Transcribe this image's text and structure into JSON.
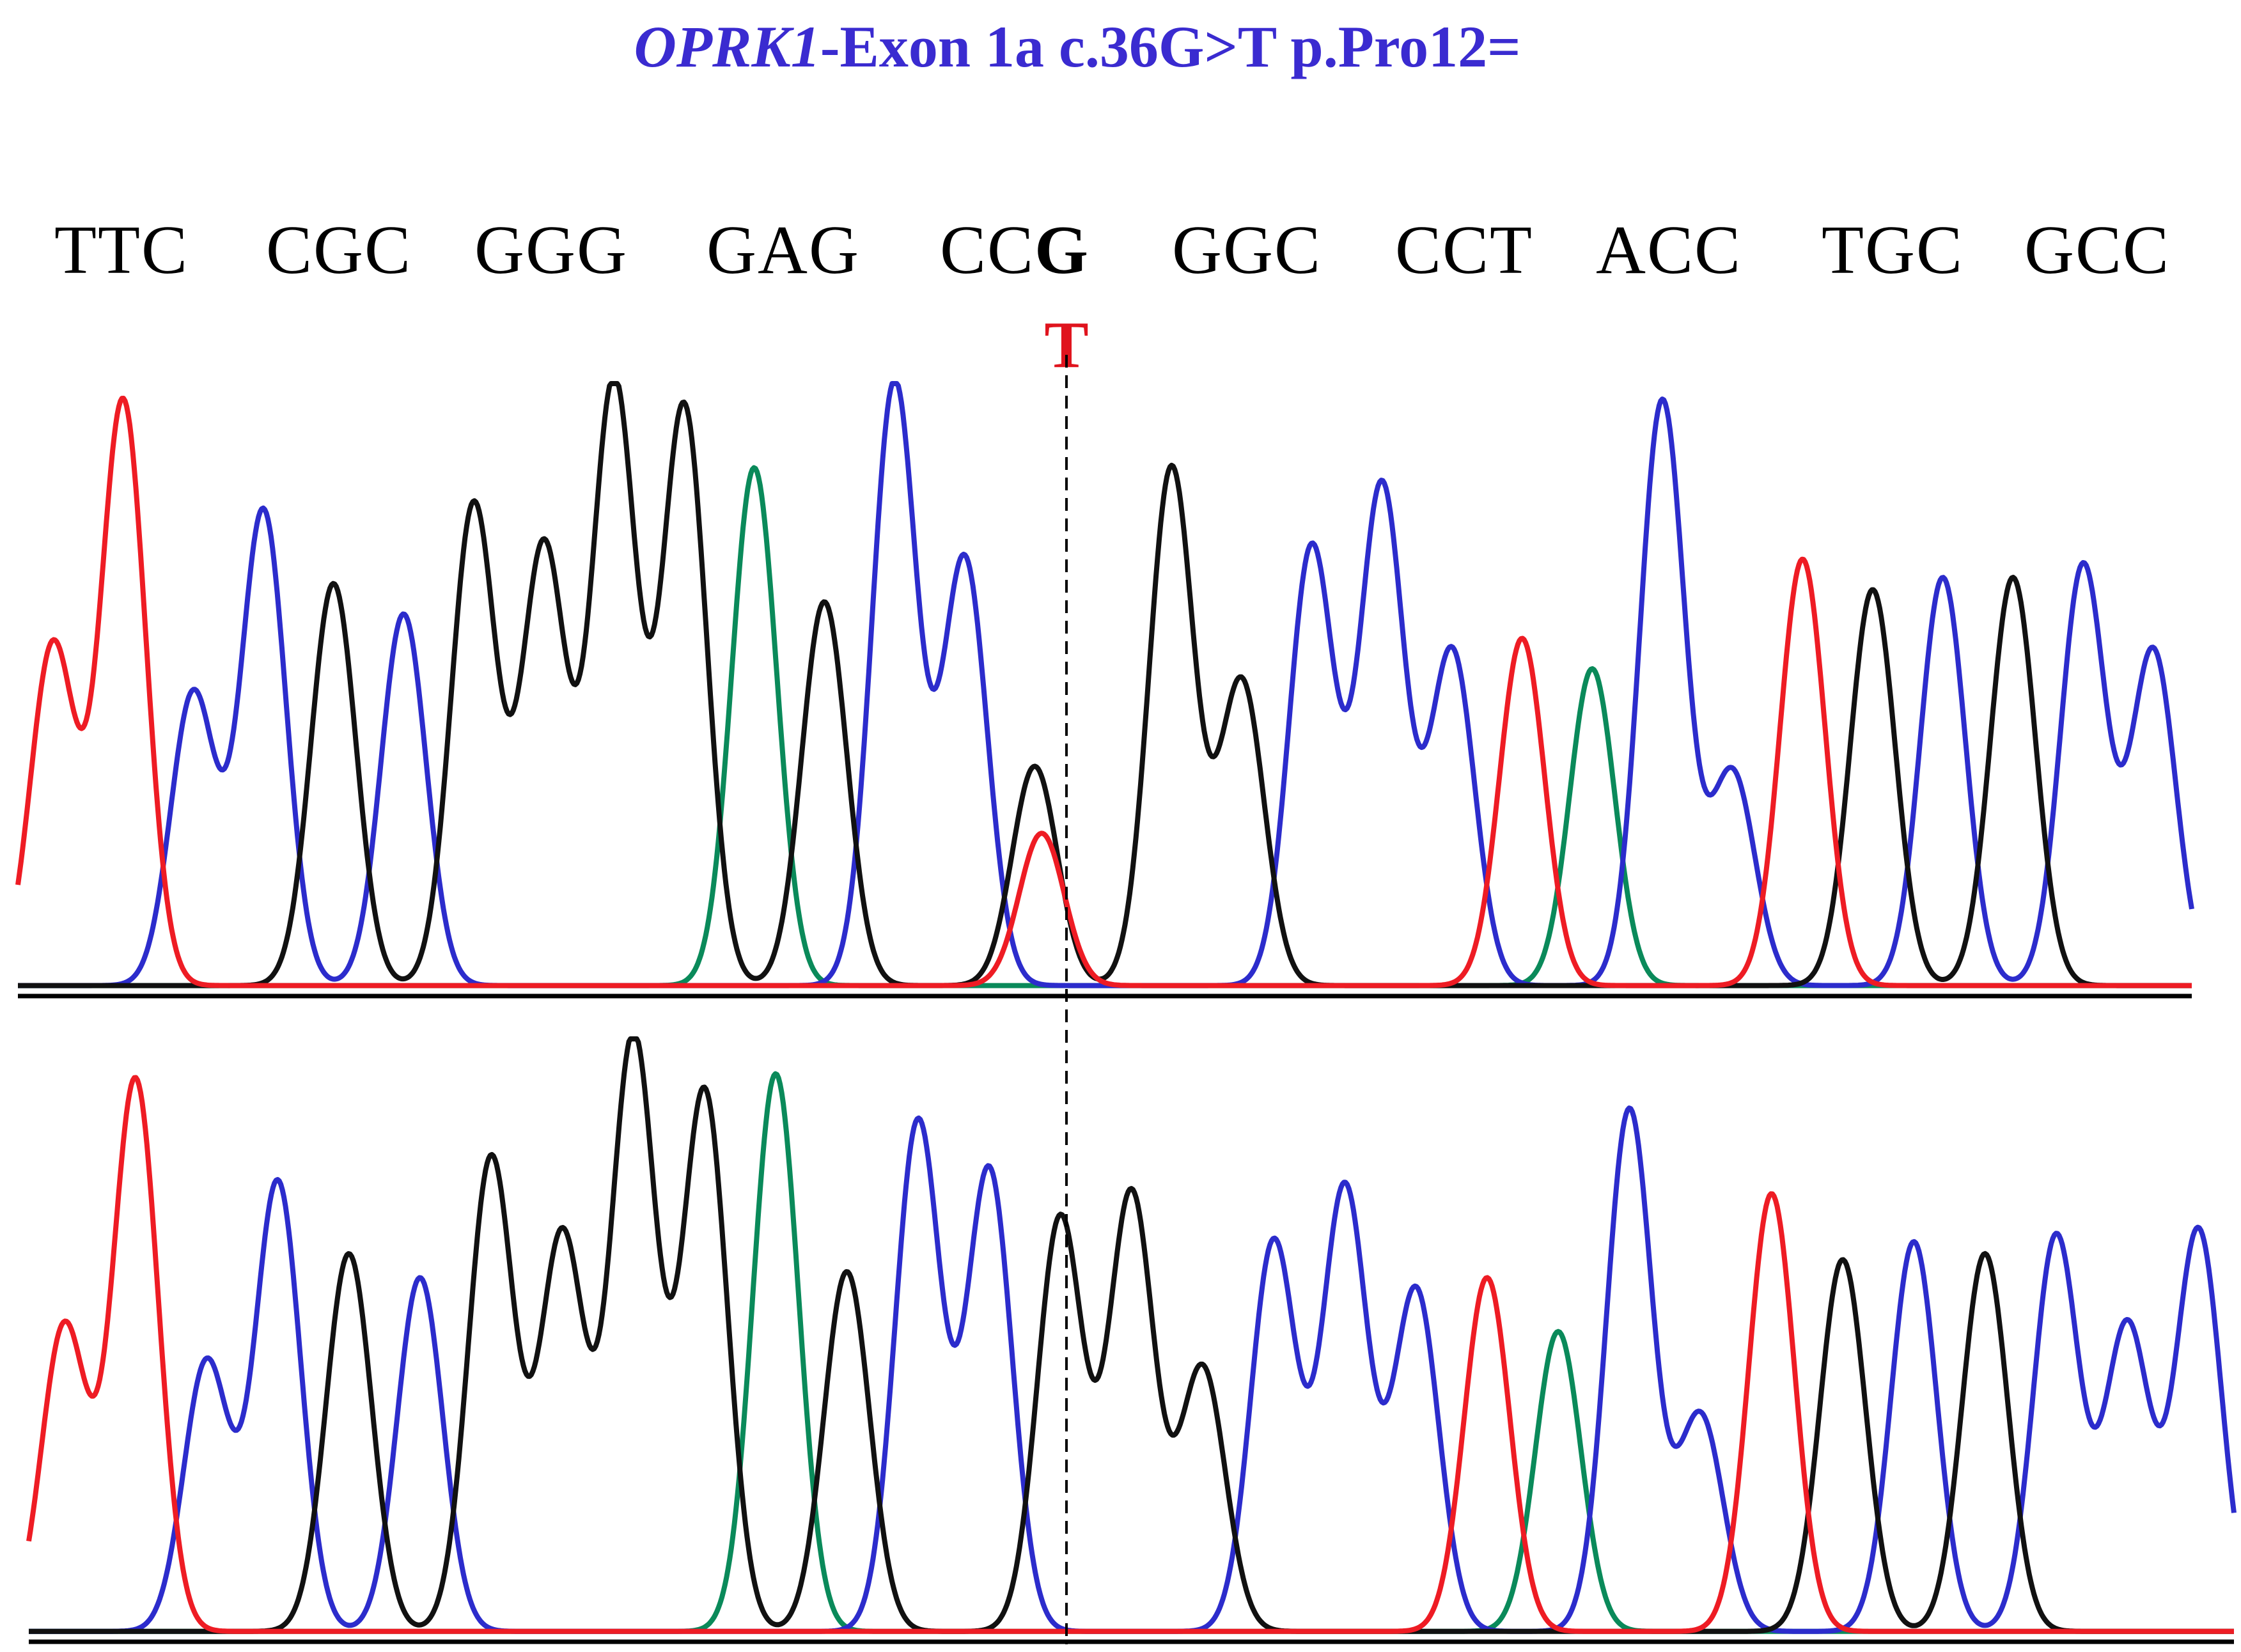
{
  "title": {
    "gene": "OPRK1",
    "rest": "-Exon 1a c.36G>T p.Pro12="
  },
  "codons": [
    "TTC",
    "CGC",
    "GGG",
    "GAG",
    "CCG",
    "GGC",
    "CCT",
    "ACC",
    "TGC",
    "GCC"
  ],
  "mutant_codon_index": 4,
  "mutation_label": "T",
  "colors": {
    "A": "#0a8a5a",
    "C": "#2c2ccc",
    "G": "#111111",
    "T": "#ee1c24",
    "title": "#3a2bd0"
  },
  "chart_data": [
    {
      "type": "line",
      "name": "chromatogram-mutant",
      "ylim": [
        0,
        100
      ],
      "peaks": [
        {
          "base": "T",
          "h": 56
        },
        {
          "base": "T",
          "h": 96
        },
        {
          "base": "C",
          "h": 48
        },
        {
          "base": "C",
          "h": 78
        },
        {
          "base": "G",
          "h": 66
        },
        {
          "base": "C",
          "h": 61
        },
        {
          "base": "G",
          "h": 79
        },
        {
          "base": "G",
          "h": 72
        },
        {
          "base": "G",
          "h": 99
        },
        {
          "base": "G",
          "h": 95
        },
        {
          "base": "A",
          "h": 85
        },
        {
          "base": "G",
          "h": 63
        },
        {
          "base": "C",
          "h": 99
        },
        {
          "base": "C",
          "h": 70
        },
        {
          "base": "G",
          "h": 36
        },
        {
          "base": "T",
          "h": 25
        },
        {
          "base": "G",
          "h": 85
        },
        {
          "base": "G",
          "h": 50
        },
        {
          "base": "C",
          "h": 72
        },
        {
          "base": "C",
          "h": 82
        },
        {
          "base": "C",
          "h": 55
        },
        {
          "base": "T",
          "h": 57
        },
        {
          "base": "A",
          "h": 52
        },
        {
          "base": "C",
          "h": 96
        },
        {
          "base": "C",
          "h": 35
        },
        {
          "base": "T",
          "h": 70
        },
        {
          "base": "G",
          "h": 65
        },
        {
          "base": "C",
          "h": 67
        },
        {
          "base": "G",
          "h": 67
        },
        {
          "base": "C",
          "h": 69
        },
        {
          "base": "C",
          "h": 55
        }
      ]
    },
    {
      "type": "line",
      "name": "chromatogram-wildtype",
      "ylim": [
        0,
        100
      ],
      "peaks": [
        {
          "base": "T",
          "h": 51
        },
        {
          "base": "T",
          "h": 92
        },
        {
          "base": "C",
          "h": 45
        },
        {
          "base": "C",
          "h": 75
        },
        {
          "base": "G",
          "h": 63
        },
        {
          "base": "C",
          "h": 59
        },
        {
          "base": "G",
          "h": 79
        },
        {
          "base": "G",
          "h": 66
        },
        {
          "base": "G",
          "h": 99
        },
        {
          "base": "G",
          "h": 90
        },
        {
          "base": "A",
          "h": 93
        },
        {
          "base": "G",
          "h": 60
        },
        {
          "base": "C",
          "h": 85
        },
        {
          "base": "C",
          "h": 77
        },
        {
          "base": "G",
          "h": 69
        },
        {
          "base": "G",
          "h": 73
        },
        {
          "base": "G",
          "h": 44
        },
        {
          "base": "C",
          "h": 65
        },
        {
          "base": "C",
          "h": 74
        },
        {
          "base": "C",
          "h": 57
        },
        {
          "base": "T",
          "h": 59
        },
        {
          "base": "A",
          "h": 50
        },
        {
          "base": "C",
          "h": 87
        },
        {
          "base": "C",
          "h": 36
        },
        {
          "base": "T",
          "h": 73
        },
        {
          "base": "G",
          "h": 62
        },
        {
          "base": "C",
          "h": 65
        },
        {
          "base": "G",
          "h": 63
        },
        {
          "base": "C",
          "h": 66
        },
        {
          "base": "C",
          "h": 51
        },
        {
          "base": "C",
          "h": 67
        }
      ]
    }
  ]
}
